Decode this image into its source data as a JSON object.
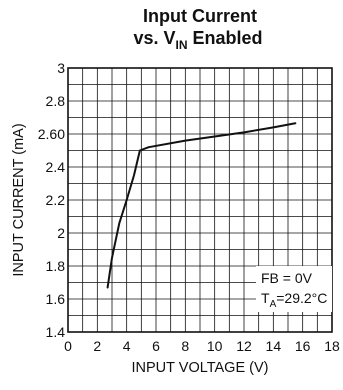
{
  "chart_data": {
    "type": "line",
    "title": "Input Current",
    "subtitle": {
      "prefix": "vs. V",
      "sub": "IN",
      "suffix": " Enabled"
    },
    "xlabel": "INPUT VOLTAGE (V)",
    "ylabel": "INPUT CURRENT (mA)",
    "xlim": [
      0,
      18
    ],
    "ylim": [
      1.4,
      3.0
    ],
    "x_ticks": [
      0,
      2,
      4,
      6,
      8,
      10,
      12,
      14,
      16,
      18
    ],
    "x_tick_labels": [
      "0",
      "2",
      "4",
      "6",
      "8",
      "10",
      "12",
      "14",
      "16",
      "18"
    ],
    "y_ticks": [
      1.4,
      1.6,
      1.8,
      2.0,
      2.2,
      2.4,
      2.6,
      2.8,
      3.0
    ],
    "y_tick_labels": [
      "1.4",
      "1.6",
      "1.8",
      "2",
      "2.2",
      "2.4",
      "2.60",
      "2.8",
      "3"
    ],
    "minor_x_step": 1,
    "minor_y_step": 0.1,
    "grid": true,
    "series": [
      {
        "x": [
          2.7,
          3.0,
          3.5,
          4.0,
          4.5,
          4.9,
          5.5,
          8.0,
          10.0,
          12.0,
          14.0,
          15.5
        ],
        "y": [
          1.67,
          1.85,
          2.06,
          2.2,
          2.35,
          2.5,
          2.52,
          2.56,
          2.585,
          2.61,
          2.64,
          2.665
        ]
      }
    ],
    "annotation": {
      "line1": "FB = 0V",
      "line2_prefix": "T",
      "line2_sub": "A",
      "line2_suffix": "=29.2°C",
      "placement": "bottom-right"
    },
    "colors": {
      "line": "#111111",
      "grid": "#111111",
      "background": "#ffffff"
    }
  }
}
